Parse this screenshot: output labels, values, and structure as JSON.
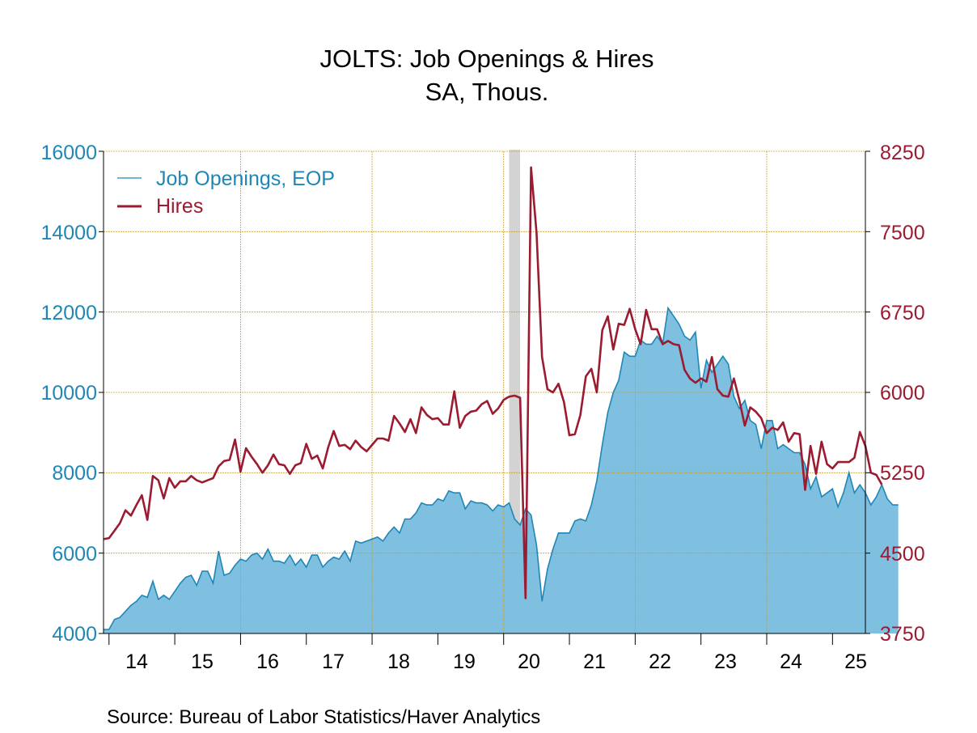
{
  "chart_data": {
    "type": "area",
    "title": "JOLTS: Job Openings & Hires",
    "subtitle": "SA, Thous.",
    "source": "Source:  Bureau of Labor Statistics/Haver Analytics",
    "x_start": "2013-12",
    "x_end": "2025-07",
    "x_tick_labels": [
      "14",
      "15",
      "16",
      "17",
      "18",
      "19",
      "20",
      "21",
      "22",
      "23",
      "24",
      "25"
    ],
    "y_left": {
      "ticks": [
        "16000",
        "14000",
        "12000",
        "10000",
        "8000",
        "6000",
        "4000"
      ],
      "ylim": [
        4000,
        16000
      ],
      "color": "#1f87b6"
    },
    "y_right": {
      "ticks": [
        "8250",
        "7500",
        "6750",
        "6000",
        "5250",
        "4500",
        "3750"
      ],
      "ylim": [
        3750,
        8250
      ],
      "color": "#9b1b30"
    },
    "recession_shading": {
      "start": "2020-02",
      "end": "2020-04",
      "color": "#d3d3d3"
    },
    "legend_position": "top-left",
    "series": [
      {
        "name": "Job Openings, EOP",
        "kind": "area",
        "axis": "left",
        "line_color": "#1f87b6",
        "fill_color": "#7fbfe0",
        "start": "2013-12",
        "values": [
          4100,
          4100,
          4350,
          4400,
          4550,
          4700,
          4800,
          4950,
          4900,
          5300,
          4850,
          4950,
          4850,
          5050,
          5250,
          5400,
          5450,
          5200,
          5550,
          5550,
          5250,
          6050,
          5450,
          5500,
          5700,
          5850,
          5800,
          5950,
          6000,
          5850,
          6100,
          5800,
          5800,
          5750,
          5950,
          5700,
          5850,
          5650,
          5950,
          5950,
          5650,
          5800,
          5900,
          5850,
          6050,
          5800,
          6300,
          6250,
          6300,
          6350,
          6400,
          6300,
          6500,
          6650,
          6500,
          6850,
          6850,
          7000,
          7250,
          7200,
          7200,
          7350,
          7300,
          7550,
          7500,
          7500,
          7100,
          7300,
          7250,
          7250,
          7200,
          7050,
          7200,
          7150,
          7250,
          6850,
          6700,
          7100,
          6950,
          6200,
          4800,
          5600,
          6100,
          6500,
          6500,
          6500,
          6800,
          6850,
          6800,
          7200,
          7800,
          8700,
          9500,
          10000,
          10300,
          11000,
          10900,
          10900,
          11300,
          11200,
          11200,
          11400,
          11200,
          12100,
          11900,
          11700,
          11400,
          11300,
          11500,
          10100,
          10800,
          10500,
          10700,
          10900,
          10700,
          9900,
          9600,
          9800,
          9300,
          9200,
          8600,
          9300,
          9300,
          8600,
          8700,
          8600,
          8500,
          8500,
          8200,
          7600,
          7900,
          7400,
          7500,
          7600,
          7150,
          7500,
          8000,
          7500,
          7700,
          7500,
          7200,
          7400,
          7700,
          7350,
          7200,
          7200
        ]
      },
      {
        "name": "Hires",
        "kind": "line",
        "axis": "right",
        "line_color": "#9b1b30",
        "start": "2013-12",
        "values": [
          4630,
          4640,
          4710,
          4780,
          4900,
          4850,
          4950,
          5040,
          4810,
          5220,
          5180,
          5010,
          5200,
          5110,
          5170,
          5170,
          5220,
          5180,
          5160,
          5180,
          5200,
          5310,
          5360,
          5370,
          5560,
          5260,
          5480,
          5400,
          5330,
          5250,
          5320,
          5420,
          5330,
          5320,
          5240,
          5320,
          5340,
          5520,
          5380,
          5410,
          5290,
          5490,
          5640,
          5500,
          5510,
          5470,
          5550,
          5490,
          5450,
          5510,
          5570,
          5570,
          5550,
          5780,
          5710,
          5630,
          5750,
          5620,
          5860,
          5790,
          5750,
          5760,
          5700,
          5700,
          6010,
          5670,
          5780,
          5820,
          5830,
          5890,
          5920,
          5800,
          5850,
          5930,
          5960,
          5970,
          5950,
          4080,
          8100,
          7490,
          6330,
          6030,
          6000,
          6080,
          5910,
          5600,
          5610,
          5790,
          6150,
          6220,
          6000,
          6580,
          6710,
          6400,
          6640,
          6630,
          6780,
          6590,
          6450,
          6770,
          6590,
          6590,
          6450,
          6480,
          6450,
          6440,
          6210,
          6130,
          6090,
          6130,
          6100,
          6330,
          6030,
          5970,
          5960,
          6130,
          5930,
          5690,
          5860,
          5820,
          5760,
          5620,
          5670,
          5650,
          5720,
          5540,
          5620,
          5610,
          5090,
          5500,
          5240,
          5540,
          5330,
          5290,
          5350,
          5350,
          5350,
          5390,
          5630,
          5500,
          5250,
          5230,
          5140
        ]
      }
    ]
  }
}
